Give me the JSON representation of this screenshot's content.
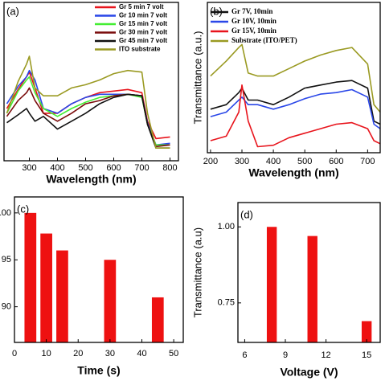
{
  "chart_data": [
    {
      "type": "line",
      "panel": "(a)",
      "x_label": "Wavelength (nm)",
      "x": [
        220,
        260,
        290,
        300,
        320,
        350,
        400,
        450,
        500,
        550,
        600,
        650,
        700,
        720,
        750,
        800
      ],
      "xlim": [
        210,
        830
      ],
      "xticks": [
        300,
        400,
        500,
        600,
        700,
        800
      ],
      "ylim": [
        0,
        100
      ],
      "legend": "upper right",
      "series": [
        {
          "name": "Gr 5 min 7 volt",
          "color": "#e8141c",
          "values": [
            33,
            45,
            53,
            56,
            46,
            30,
            30,
            36,
            40,
            43,
            44,
            45,
            43,
            25,
            14,
            15
          ]
        },
        {
          "name": "Gr 10 min 7 volt",
          "color": "#2a47e8",
          "values": [
            36,
            47,
            53,
            57,
            51,
            33,
            30,
            36,
            40,
            42,
            42,
            42,
            41,
            24,
            10,
            11
          ]
        },
        {
          "name": "Gr 15 min 7 volt",
          "color": "#44ee33",
          "values": [
            30,
            44,
            51,
            53,
            43,
            33,
            28,
            33,
            37,
            40,
            41,
            42,
            40,
            23,
            10,
            10
          ]
        },
        {
          "name": "Gr 30 min 7 volt",
          "color": "#7a0c0c",
          "values": [
            28,
            38,
            43,
            46,
            38,
            30,
            25,
            30,
            36,
            38,
            41,
            42,
            41,
            23,
            9,
            10
          ]
        },
        {
          "name": "Gr 45 min 7 volt",
          "color": "#111111",
          "values": [
            24,
            29,
            33,
            30,
            25,
            28,
            20,
            25,
            30,
            36,
            40,
            42,
            41,
            23,
            8,
            8
          ]
        },
        {
          "name": "ITO substrate",
          "color": "#9a9a22",
          "values": [
            30,
            50,
            61,
            66,
            46,
            41,
            41,
            46,
            48,
            51,
            55,
            57,
            56,
            30,
            8,
            8
          ]
        }
      ]
    },
    {
      "type": "line",
      "panel": "(b)",
      "x_label": "Wavelength (nm)",
      "y_label": "Transmittance (a.u.)",
      "x": [
        200,
        250,
        290,
        300,
        320,
        350,
        400,
        450,
        500,
        550,
        600,
        650,
        700,
        720,
        740
      ],
      "xlim": [
        190,
        740
      ],
      "xticks": [
        200,
        300,
        400,
        500,
        600,
        700
      ],
      "ylim": [
        0,
        100
      ],
      "legend": "upper left",
      "series": [
        {
          "name": "Gr 7V, 10min",
          "color": "#111111",
          "values": [
            29,
            32,
            40,
            43,
            35,
            35,
            32,
            37,
            43,
            45,
            47,
            48,
            43,
            21,
            19
          ]
        },
        {
          "name": "Gr 10V, 10min",
          "color": "#2a47e8",
          "values": [
            24,
            27,
            35,
            37,
            32,
            32,
            29,
            32,
            36,
            39,
            40,
            42,
            37,
            19,
            16
          ]
        },
        {
          "name": "Gr 15V, 10min",
          "color": "#e8141c",
          "values": [
            8,
            11,
            27,
            45,
            21,
            4,
            5,
            10,
            13,
            16,
            19,
            20,
            16,
            8,
            6
          ]
        },
        {
          "name": "Substrate (ITO/PET)",
          "color": "#9a9a22",
          "values": [
            51,
            61,
            70,
            72,
            53,
            51,
            51,
            56,
            61,
            65,
            68,
            70,
            59,
            32,
            27
          ]
        }
      ]
    },
    {
      "type": "bar",
      "panel": "(c)",
      "x_label": "Time (s)",
      "x": [
        5,
        10,
        15,
        30,
        45
      ],
      "values": [
        100,
        97.8,
        96,
        95,
        91
      ],
      "color": "#ee1111",
      "xlim": [
        0,
        53
      ],
      "xticks": [
        0,
        10,
        20,
        30,
        40,
        50
      ],
      "ylim": [
        86.2,
        101.7
      ],
      "yticks": [
        90,
        95,
        100
      ]
    },
    {
      "type": "bar",
      "panel": "(d)",
      "x_label": "Voltage (V)",
      "y_label": "Transmittance (a.u)",
      "x": [
        8,
        11,
        15
      ],
      "values": [
        1.0,
        0.97,
        0.69
      ],
      "color": "#ee1111",
      "xlim": [
        5.5,
        16
      ],
      "xticks": [
        6,
        9,
        12,
        15
      ],
      "ylim": [
        0.62,
        1.08
      ],
      "yticks": [
        {
          "value": 0.75,
          "label": "0.75"
        },
        {
          "value": 1,
          "label": "1.00"
        }
      ]
    }
  ]
}
